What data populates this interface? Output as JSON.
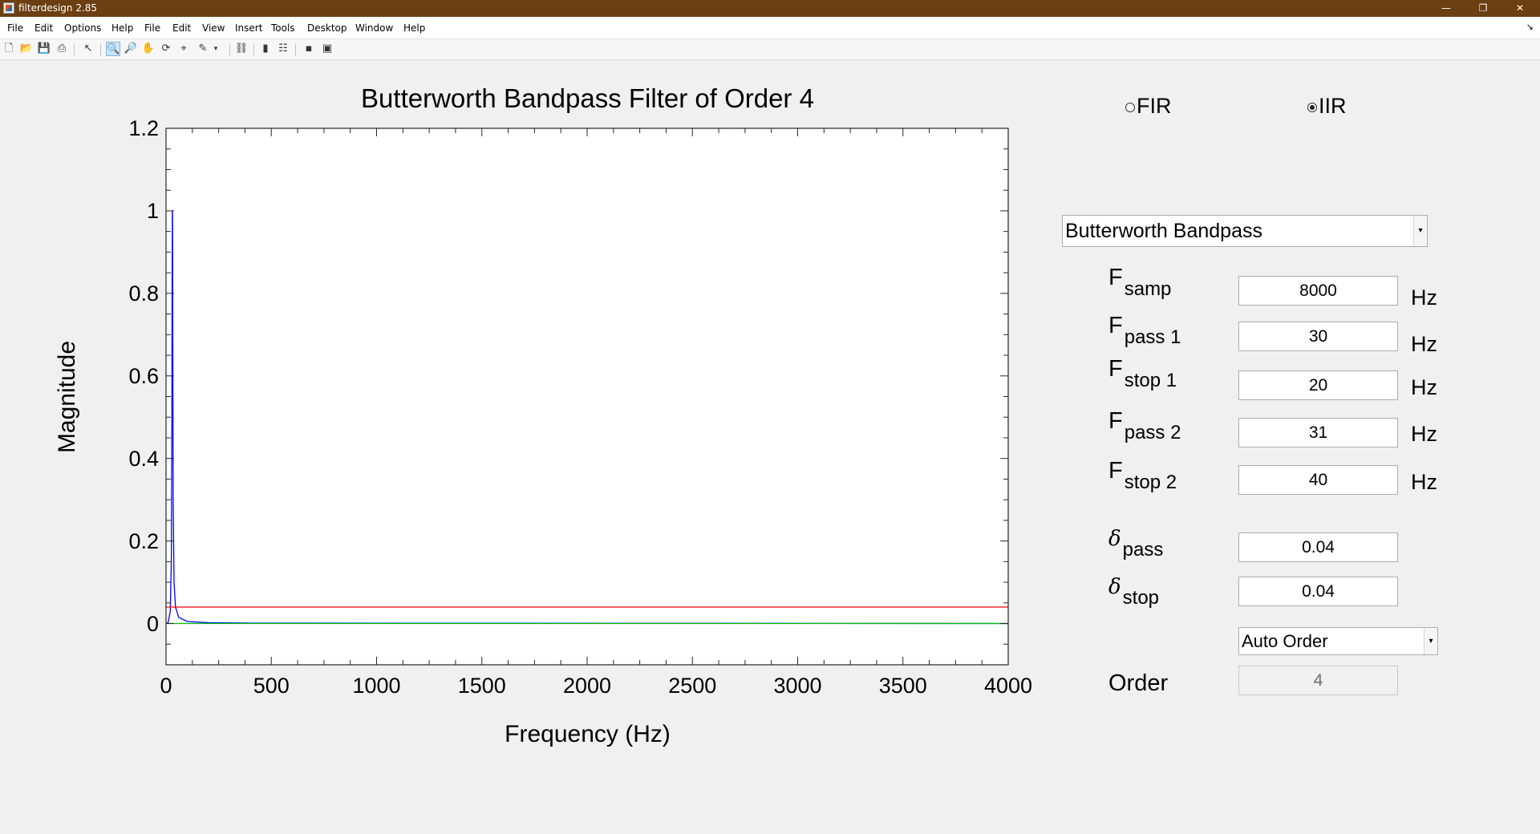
{
  "window": {
    "title": "filterdesign 2.85",
    "minimize_icon": "minimize-icon",
    "restore_icon": "restore-icon",
    "close_icon": "close-icon"
  },
  "menubar": {
    "items": [
      "File",
      "Edit",
      "Options",
      "Help",
      "File",
      "Edit",
      "View",
      "Insert",
      "Tools",
      "Desktop",
      "Window",
      "Help"
    ]
  },
  "toolbar": {
    "icons": [
      "new-figure-icon",
      "open-icon",
      "save-icon",
      "print-icon",
      "edit-plot-icon",
      "zoom-in-icon",
      "zoom-out-icon",
      "pan-icon",
      "rotate-3d-icon",
      "data-cursor-icon",
      "brush-icon",
      "link-plot-icon",
      "colorbar-icon",
      "legend-icon",
      "hide-plot-tools-icon",
      "show-plot-tools-icon"
    ],
    "active": "zoom-in-icon"
  },
  "chart_data": {
    "type": "line",
    "title": "Butterworth Bandpass Filter of Order 4",
    "xlabel": "Frequency (Hz)",
    "ylabel": "Magnitude",
    "xlim": [
      0,
      4000
    ],
    "ylim": [
      -0.1,
      1.2
    ],
    "xticks": [
      0,
      500,
      1000,
      1500,
      2000,
      2500,
      3000,
      3500,
      4000
    ],
    "yticks": [
      0,
      0.2,
      0.4,
      0.6,
      0.8,
      1,
      1.2
    ],
    "ytick_labels": [
      "0",
      "0.2",
      "0.4",
      "0.6",
      "0.8",
      "1",
      "1.2"
    ],
    "grid": false,
    "series": [
      {
        "color": "#0000ff",
        "x": [
          0,
          10,
          20,
          25,
          28,
          29,
          30,
          30.5,
          31,
          32,
          34,
          38,
          45,
          60,
          100,
          200,
          400,
          4000
        ],
        "y": [
          0,
          0.002,
          0.03,
          0.15,
          0.5,
          0.85,
          1.0,
          1.0,
          1.0,
          0.7,
          0.3,
          0.1,
          0.04,
          0.015,
          0.005,
          0.002,
          0.001,
          0
        ]
      },
      {
        "color": "#00c000",
        "x": [
          0,
          4000
        ],
        "y": [
          0,
          0
        ]
      },
      {
        "color": "#ff0000",
        "x": [
          0,
          4000
        ],
        "y": [
          0.04,
          0.04
        ]
      }
    ]
  },
  "filter_class": {
    "fir_label": "FIR",
    "iir_label": "IIR",
    "selected": "IIR"
  },
  "filter_type": {
    "value": "Butterworth Bandpass"
  },
  "params": {
    "fsamp": {
      "label": "F",
      "sub": "samp",
      "value": "8000",
      "unit": "Hz"
    },
    "fpass1": {
      "label": "F",
      "sub": "pass 1",
      "value": "30",
      "unit": "Hz"
    },
    "fstop1": {
      "label": "F",
      "sub": "stop 1",
      "value": "20",
      "unit": "Hz"
    },
    "fpass2": {
      "label": "F",
      "sub": "pass 2",
      "value": "31",
      "unit": "Hz"
    },
    "fstop2": {
      "label": "F",
      "sub": "stop 2",
      "value": "40",
      "unit": "Hz"
    },
    "dpass": {
      "label": "δ",
      "sub": "pass",
      "value": "0.04"
    },
    "dstop": {
      "label": "δ",
      "sub": "stop",
      "value": "0.04"
    }
  },
  "order_mode": {
    "value": "Auto Order"
  },
  "order": {
    "label": "Order",
    "value": "4"
  }
}
